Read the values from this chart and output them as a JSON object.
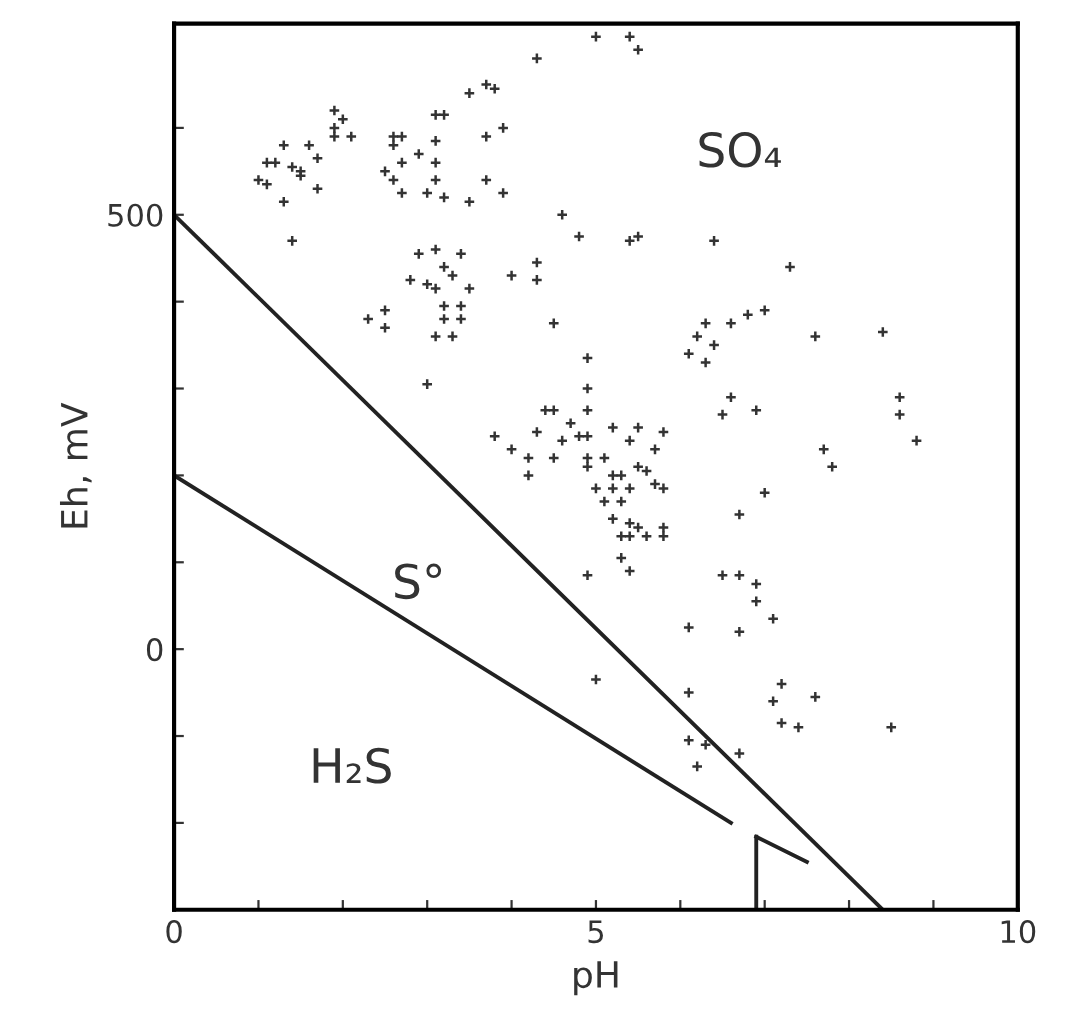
{
  "chart_data": {
    "type": "scatter",
    "xlabel": "pH",
    "ylabel": "Eh, mV",
    "xlim": [
      0,
      10
    ],
    "ylim": [
      -300,
      720
    ],
    "xticks": [
      0,
      {
        "value": 1,
        "label": null
      },
      {
        "value": 2,
        "label": null
      },
      {
        "value": 3,
        "label": null
      },
      {
        "value": 4,
        "label": null
      },
      5,
      {
        "value": 6,
        "label": null
      },
      {
        "value": 7,
        "label": null
      },
      {
        "value": 8,
        "label": null
      },
      {
        "value": 9,
        "label": null
      },
      10
    ],
    "yticks": [
      {
        "value": -200,
        "label": null
      },
      {
        "value": -100,
        "label": null
      },
      0,
      {
        "value": 100,
        "label": null
      },
      {
        "value": 200,
        "label": null
      },
      {
        "value": 300,
        "label": null
      },
      {
        "value": 400,
        "label": null
      },
      500,
      {
        "value": 600,
        "label": null
      }
    ],
    "grid": false,
    "legend": false,
    "annotations": [
      "SO₄",
      "S°",
      "H₂S"
    ],
    "series": [
      {
        "marker": "cross",
        "color": "#333333",
        "x": [
          1.9,
          2.0,
          1.9,
          1.9,
          2.1,
          1.3,
          1.6,
          1.7,
          1.1,
          1.2,
          1.4,
          1.5,
          1.0,
          1.1,
          1.5,
          1.7,
          1.3,
          1.4,
          2.6,
          2.7,
          2.6,
          2.7,
          2.9,
          2.5,
          2.6,
          2.7,
          3.0,
          3.2,
          3.1,
          3.1,
          3.1,
          3.1,
          3.2,
          3.5,
          3.7,
          3.8,
          3.7,
          3.9,
          3.7,
          3.9,
          3.5,
          4.3,
          4.6,
          4.8,
          2.9,
          3.1,
          3.4,
          3.2,
          3.3,
          2.8,
          3.0,
          3.1,
          3.5,
          4.0,
          4.3,
          4.3,
          3.2,
          3.4,
          2.3,
          2.5,
          2.5,
          3.2,
          3.4,
          3.1,
          3.3,
          4.5,
          3.0,
          4.9,
          4.9,
          5.0,
          5.4,
          5.5,
          5.4,
          5.5,
          6.4,
          7.3,
          6.3,
          6.6,
          6.8,
          7.0,
          6.2,
          6.4,
          6.1,
          6.3,
          7.6,
          8.4,
          6.6,
          6.5,
          6.9,
          8.6,
          8.6,
          8.8,
          7.7,
          4.4,
          4.5,
          4.9,
          3.8,
          4.0,
          4.3,
          4.6,
          4.7,
          4.8,
          4.9,
          5.2,
          5.5,
          5.8,
          5.4,
          4.2,
          4.5,
          4.9,
          5.1,
          5.7,
          4.2,
          4.9,
          5.2,
          5.3,
          5.5,
          5.6,
          5.0,
          5.2,
          5.4,
          5.7,
          5.8,
          5.1,
          5.3,
          5.2,
          5.4,
          5.5,
          5.8,
          5.3,
          5.4,
          5.6,
          5.8,
          5.3,
          5.4,
          4.9,
          7.8,
          7.0,
          6.7,
          6.5,
          6.7,
          6.9,
          6.9,
          7.1,
          6.1,
          6.7,
          5.0,
          6.1,
          7.2,
          7.6,
          7.1,
          7.2,
          7.4,
          8.5,
          6.1,
          6.3,
          6.7,
          6.2
        ],
        "values": [
          620,
          610,
          600,
          590,
          590,
          580,
          580,
          565,
          560,
          560,
          555,
          550,
          540,
          535,
          545,
          530,
          515,
          470,
          590,
          590,
          580,
          560,
          570,
          550,
          540,
          525,
          525,
          520,
          540,
          560,
          585,
          615,
          615,
          640,
          650,
          645,
          590,
          600,
          540,
          525,
          515,
          680,
          500,
          475,
          455,
          460,
          455,
          440,
          430,
          425,
          420,
          415,
          415,
          430,
          445,
          425,
          395,
          395,
          380,
          390,
          370,
          380,
          380,
          360,
          360,
          375,
          305,
          335,
          300,
          705,
          705,
          690,
          470,
          475,
          470,
          440,
          375,
          375,
          385,
          390,
          360,
          350,
          340,
          330,
          360,
          365,
          290,
          270,
          275,
          290,
          270,
          240,
          230,
          275,
          275,
          275,
          245,
          230,
          250,
          240,
          260,
          245,
          245,
          255,
          255,
          250,
          240,
          220,
          220,
          220,
          220,
          230,
          200,
          210,
          200,
          200,
          210,
          205,
          185,
          185,
          185,
          190,
          185,
          170,
          170,
          150,
          145,
          140,
          140,
          130,
          130,
          130,
          130,
          105,
          90,
          85,
          210,
          180,
          155,
          85,
          85,
          75,
          55,
          35,
          25,
          20,
          -35,
          -50,
          -40,
          -55,
          -60,
          -85,
          -90,
          -90,
          -105,
          -110,
          -120,
          -135
        ]
      },
      {
        "type": "line",
        "color": "#222222",
        "x": [
          0,
          8.4
        ],
        "values": [
          500,
          -300
        ]
      },
      {
        "type": "line",
        "color": "#222222",
        "x": [
          0,
          6.6
        ],
        "values": [
          200,
          -200
        ]
      },
      {
        "type": "line",
        "color": "#222222",
        "x": [
          6.9,
          7.5
        ],
        "values": [
          -216,
          -245
        ]
      },
      {
        "type": "line",
        "color": "#222222",
        "x": [
          6.9,
          6.9
        ],
        "values": [
          -300,
          -216
        ]
      }
    ]
  }
}
